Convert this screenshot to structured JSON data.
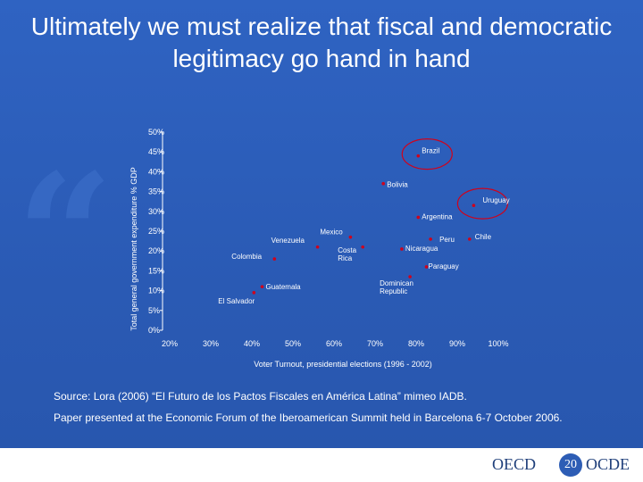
{
  "slide": {
    "title": "Ultimately we must realize that fiscal and democratic legitimacy go hand in hand",
    "source": "Source: Lora (2006) “El Futuro de los Pactos Fiscales en América Latina” mimeo IADB.",
    "paper_note": "Paper presented at the Economic Forum of the Iberoamerican Summit held in Barcelona 6-7 October 2006.",
    "page_number": "20",
    "logo_left": "OECD",
    "logo_right": "OCDE",
    "background_color": "#2d5db5"
  },
  "chart_data": {
    "type": "scatter",
    "title": "",
    "xlabel": "Voter Turnout, presidential elections (1996 - 2002)",
    "ylabel": "Total general government expenditure % GDP",
    "xlim": [
      20,
      100
    ],
    "ylim": [
      0,
      50
    ],
    "x_ticks": [
      "20%",
      "30%",
      "40%",
      "50%",
      "60%",
      "70%",
      "80%",
      "90%",
      "100%"
    ],
    "y_ticks": [
      "0%",
      "5%",
      "10%",
      "15%",
      "20%",
      "25%",
      "30%",
      "35%",
      "40%",
      "45%",
      "50%"
    ],
    "grid": false,
    "point_color": "#d0021b",
    "highlight_color": "#d0021b",
    "points": [
      {
        "label": "Brazil",
        "x": 80.5,
        "y": 44,
        "highlight": true
      },
      {
        "label": "Bolivia",
        "x": 72,
        "y": 37,
        "highlight": false
      },
      {
        "label": "Uruguay",
        "x": 94,
        "y": 31.5,
        "highlight": true
      },
      {
        "label": "Argentina",
        "x": 80.5,
        "y": 28.5,
        "highlight": false
      },
      {
        "label": "Mexico",
        "x": 64,
        "y": 23.5,
        "highlight": false
      },
      {
        "label": "Peru",
        "x": 83.5,
        "y": 23,
        "highlight": false
      },
      {
        "label": "Chile",
        "x": 93,
        "y": 23,
        "highlight": false
      },
      {
        "label": "Venezuela",
        "x": 56,
        "y": 21,
        "highlight": false
      },
      {
        "label": "Costa Rica",
        "x": 67,
        "y": 21,
        "highlight": false
      },
      {
        "label": "Nicaragua",
        "x": 76.5,
        "y": 20.5,
        "highlight": false
      },
      {
        "label": "Colombia",
        "x": 45.5,
        "y": 18,
        "highlight": false
      },
      {
        "label": "Paraguay",
        "x": 82.5,
        "y": 16,
        "highlight": false
      },
      {
        "label": "Dominican Republic",
        "x": 78.5,
        "y": 13.5,
        "highlight": false
      },
      {
        "label": "Guatemala",
        "x": 42.5,
        "y": 11,
        "highlight": false
      },
      {
        "label": "El Salvador",
        "x": 40.5,
        "y": 9.5,
        "highlight": false
      }
    ]
  }
}
